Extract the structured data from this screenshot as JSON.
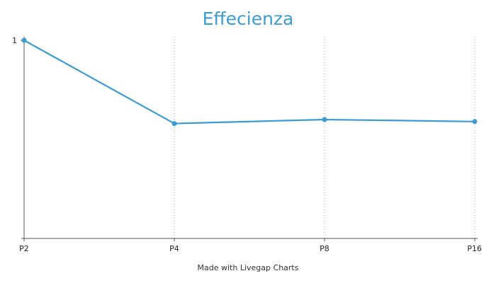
{
  "chart_data": {
    "type": "line",
    "title": "Effecienza",
    "categories": [
      "P2",
      "P4",
      "P8",
      "P16"
    ],
    "series": [
      {
        "values": [
          1.0,
          0.58,
          0.6,
          0.59
        ]
      }
    ],
    "y_tick_labels": [
      "1"
    ],
    "ylim": [
      0,
      1
    ],
    "grid": "vertical dotted",
    "legend": "none",
    "color": "#3a9bd5"
  },
  "footer": {
    "credit": "Made with Livegap Charts"
  }
}
